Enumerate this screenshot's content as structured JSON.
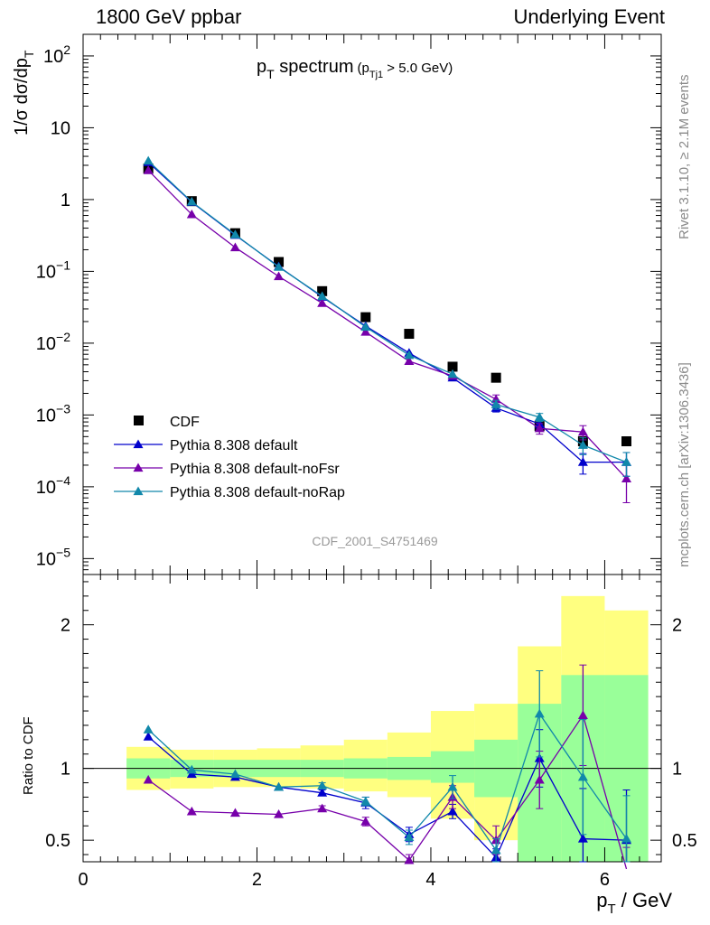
{
  "header": {
    "left": "1800 GeV ppbar",
    "right": "Underlying Event"
  },
  "side": {
    "rivet": "Rivet 3.1.10, ≥ 2.1M events",
    "mcplots": "mcplots.cern.ch [arXiv:1306.3436]"
  },
  "chart_data": [
    {
      "type": "scatter",
      "panel": "main",
      "title": "p_T spectrum",
      "title_cut": "(p_Tj1 > 5.0 GeV)",
      "ylabel": "1/σ dσ/dp_T",
      "xlim": [
        0,
        6.65
      ],
      "ylim": [
        6e-06,
        200
      ],
      "yscale": "log",
      "watermark": "CDF_2001_S4751469",
      "legend_position": "center-left",
      "yticks": [
        {
          "v": 1e-05,
          "base": "10",
          "exp": "−5"
        },
        {
          "v": 0.0001,
          "base": "10",
          "exp": "−4"
        },
        {
          "v": 0.001,
          "base": "10",
          "exp": "−3"
        },
        {
          "v": 0.01,
          "base": "10",
          "exp": "−2"
        },
        {
          "v": 0.1,
          "base": "10",
          "exp": "−1"
        },
        {
          "v": 1,
          "base": "1",
          "exp": ""
        },
        {
          "v": 10,
          "base": "10",
          "exp": ""
        },
        {
          "v": 100,
          "base": "10",
          "exp": "2"
        }
      ],
      "x": [
        0.75,
        1.25,
        1.75,
        2.25,
        2.75,
        3.25,
        3.75,
        4.25,
        4.75,
        5.25,
        5.75,
        6.25
      ],
      "series": [
        {
          "name": "CDF",
          "marker": "square",
          "color": "#000000",
          "values": [
            2.7,
            0.95,
            0.34,
            0.135,
            0.053,
            0.023,
            0.0135,
            0.0047,
            0.0033,
            0.0007,
            0.00043,
            0.00043
          ]
        },
        {
          "name": "Pythia 8.308 default",
          "marker": "triangle",
          "color": "#0000cc",
          "values": [
            3.3,
            0.92,
            0.32,
            0.117,
            0.044,
            0.0173,
            0.0073,
            0.0033,
            0.00125,
            0.00075,
            0.00022,
            0.00022
          ],
          "err": [
            0,
            0,
            0,
            0,
            0,
            0,
            0,
            0,
            0.00015,
            0.0001,
            7e-05,
            8e-05
          ]
        },
        {
          "name": "Pythia 8.308 default-noFsr",
          "marker": "triangle",
          "color": "#7700aa",
          "values": [
            2.55,
            0.62,
            0.215,
            0.085,
            0.036,
            0.0143,
            0.0056,
            0.0035,
            0.00165,
            0.00065,
            0.00058,
            0.00013
          ],
          "err": [
            0,
            0,
            0,
            0,
            0,
            0,
            0,
            0,
            0.00025,
            0.00011,
            0.00013,
            7e-05
          ]
        },
        {
          "name": "Pythia 8.308 default-noRap",
          "marker": "triangle",
          "color": "#1188aa",
          "values": [
            3.45,
            0.93,
            0.325,
            0.115,
            0.045,
            0.0168,
            0.0068,
            0.0037,
            0.0014,
            0.00093,
            0.00038,
            0.00022
          ],
          "err": [
            0,
            0,
            0,
            0,
            0,
            0,
            0,
            0,
            0.0002,
            0.00012,
            0.0001,
            8e-05
          ]
        }
      ]
    },
    {
      "type": "scatter",
      "panel": "ratio",
      "ylabel": "Ratio to CDF",
      "xlabel": "p_T / GeV",
      "xlim": [
        0,
        6.65
      ],
      "ylim": [
        0.35,
        2.35
      ],
      "xticks": [
        0,
        2,
        4,
        6
      ],
      "yticks": [
        0.5,
        1,
        2
      ],
      "x": [
        0.75,
        1.25,
        1.75,
        2.25,
        2.75,
        3.25,
        3.75,
        4.25,
        4.75,
        5.25,
        5.75,
        6.25
      ],
      "band_edges": [
        0.5,
        1.0,
        1.5,
        2.0,
        2.5,
        3.0,
        3.5,
        4.0,
        4.5,
        5.0,
        5.5,
        6.0,
        6.5
      ],
      "band_inner": [
        [
          0.93,
          1.07
        ],
        [
          0.94,
          1.06
        ],
        [
          0.94,
          1.06
        ],
        [
          0.94,
          1.06
        ],
        [
          0.94,
          1.06
        ],
        [
          0.93,
          1.07
        ],
        [
          0.92,
          1.08
        ],
        [
          0.9,
          1.12
        ],
        [
          0.8,
          1.2
        ],
        [
          0.35,
          1.45
        ],
        [
          0.35,
          1.65
        ],
        [
          0.35,
          1.65
        ]
      ],
      "band_outer": [
        [
          0.85,
          1.15
        ],
        [
          0.86,
          1.13
        ],
        [
          0.87,
          1.13
        ],
        [
          0.87,
          1.14
        ],
        [
          0.86,
          1.16
        ],
        [
          0.84,
          1.2
        ],
        [
          0.8,
          1.25
        ],
        [
          0.65,
          1.4
        ],
        [
          0.5,
          1.45
        ],
        [
          0.35,
          1.85
        ],
        [
          0.35,
          2.2
        ],
        [
          0.35,
          2.1
        ]
      ],
      "series": [
        {
          "name": "Pythia 8.308 default",
          "color": "#0000cc",
          "values": [
            1.22,
            0.96,
            0.94,
            0.87,
            0.83,
            0.76,
            0.54,
            0.7,
            0.38,
            1.07,
            0.51,
            0.5
          ],
          "err": [
            0,
            0,
            0,
            0,
            0.02,
            0.04,
            0.05,
            0.05,
            0.06,
            0.2,
            0.35,
            0.35
          ]
        },
        {
          "name": "Pythia 8.308 default-noFsr",
          "color": "#7700aa",
          "values": [
            0.92,
            0.7,
            0.69,
            0.68,
            0.72,
            0.63,
            0.36,
            0.8,
            0.5,
            0.92,
            1.37,
            0.3
          ],
          "err": [
            0,
            0,
            0,
            0,
            0.02,
            0.03,
            0.04,
            0.08,
            0.1,
            0.2,
            0.35,
            0.15
          ]
        },
        {
          "name": "Pythia 8.308 default-noRap",
          "color": "#1188aa",
          "values": [
            1.27,
            0.99,
            0.96,
            0.87,
            0.88,
            0.77,
            0.52,
            0.87,
            0.43,
            1.38,
            0.94,
            0.51
          ],
          "err": [
            0,
            0,
            0,
            0,
            0.02,
            0.03,
            0.05,
            0.08,
            0.08,
            0.3,
            0.4,
            0.3
          ]
        }
      ]
    }
  ]
}
